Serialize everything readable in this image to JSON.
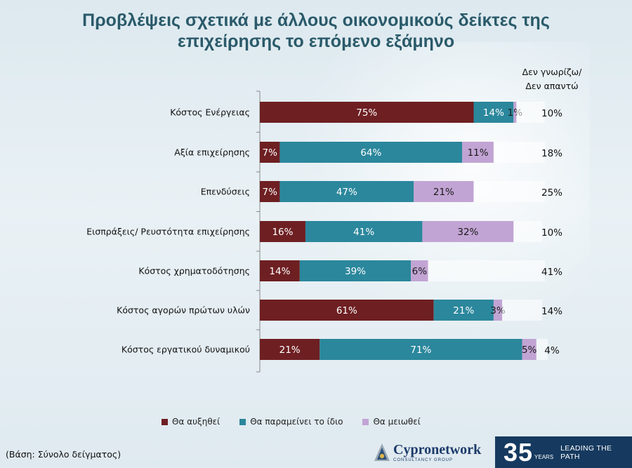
{
  "title_lines": [
    "Προβλέψεις σχετικά με άλλους οικονομικούς δείκτες της",
    "επιχείρησης το επόμενο εξάμηνο"
  ],
  "chart_data": {
    "type": "bar",
    "orientation": "horizontal",
    "stacked": true,
    "title": "Προβλέψεις σχετικά με άλλους οικονομικούς δείκτες της επιχείρησης το επόμενο εξάμηνο",
    "categories": [
      "Κόστος Ενέργειας",
      "Αξία επιχείρησης",
      "Επενδύσεις",
      "Εισπράξεις/ Ρευστότητα επιχείρησης",
      "Κόστος χρηματοδότησης",
      "Κόστος αγορών πρώτων υλών",
      "Κόστος εργατικού δυναμικού"
    ],
    "series": [
      {
        "name": "Θα αυξηθεί",
        "color": "#6e1f22",
        "values": [
          75,
          7,
          7,
          16,
          14,
          61,
          21
        ]
      },
      {
        "name": "Θα παραμείνει το ίδιο",
        "color": "#2b879c",
        "values": [
          14,
          64,
          47,
          41,
          39,
          21,
          71
        ]
      },
      {
        "name": "Θα μειωθεί",
        "color": "#c2a4d4",
        "values": [
          1,
          11,
          21,
          32,
          6,
          3,
          5
        ]
      },
      {
        "name": "Δεν γνωρίζω/ Δεν απαντώ",
        "color": "#ffffff",
        "values": [
          10,
          18,
          25,
          10,
          41,
          14,
          4
        ]
      }
    ],
    "other_header_lines": [
      "Δεν γνωρίζω/",
      "Δεν απαντώ"
    ],
    "unit": "%",
    "xlim": [
      0,
      100
    ],
    "legend_position": "bottom"
  },
  "legend": [
    {
      "label": "Θα αυξηθεί",
      "color": "#6e1f22"
    },
    {
      "label": "Θα παραμείνει το ίδιο",
      "color": "#2b879c"
    },
    {
      "label": "Θα μειωθεί",
      "color": "#c2a4d4"
    }
  ],
  "footnote": "(Βάση: Σύνολο δείγματος)",
  "brand": {
    "name": "Cypronetwork",
    "sub": "CONSULTANCY GROUP",
    "years_number": "35",
    "years_label": "YEARS",
    "tagline": "LEADING THE PATH"
  }
}
